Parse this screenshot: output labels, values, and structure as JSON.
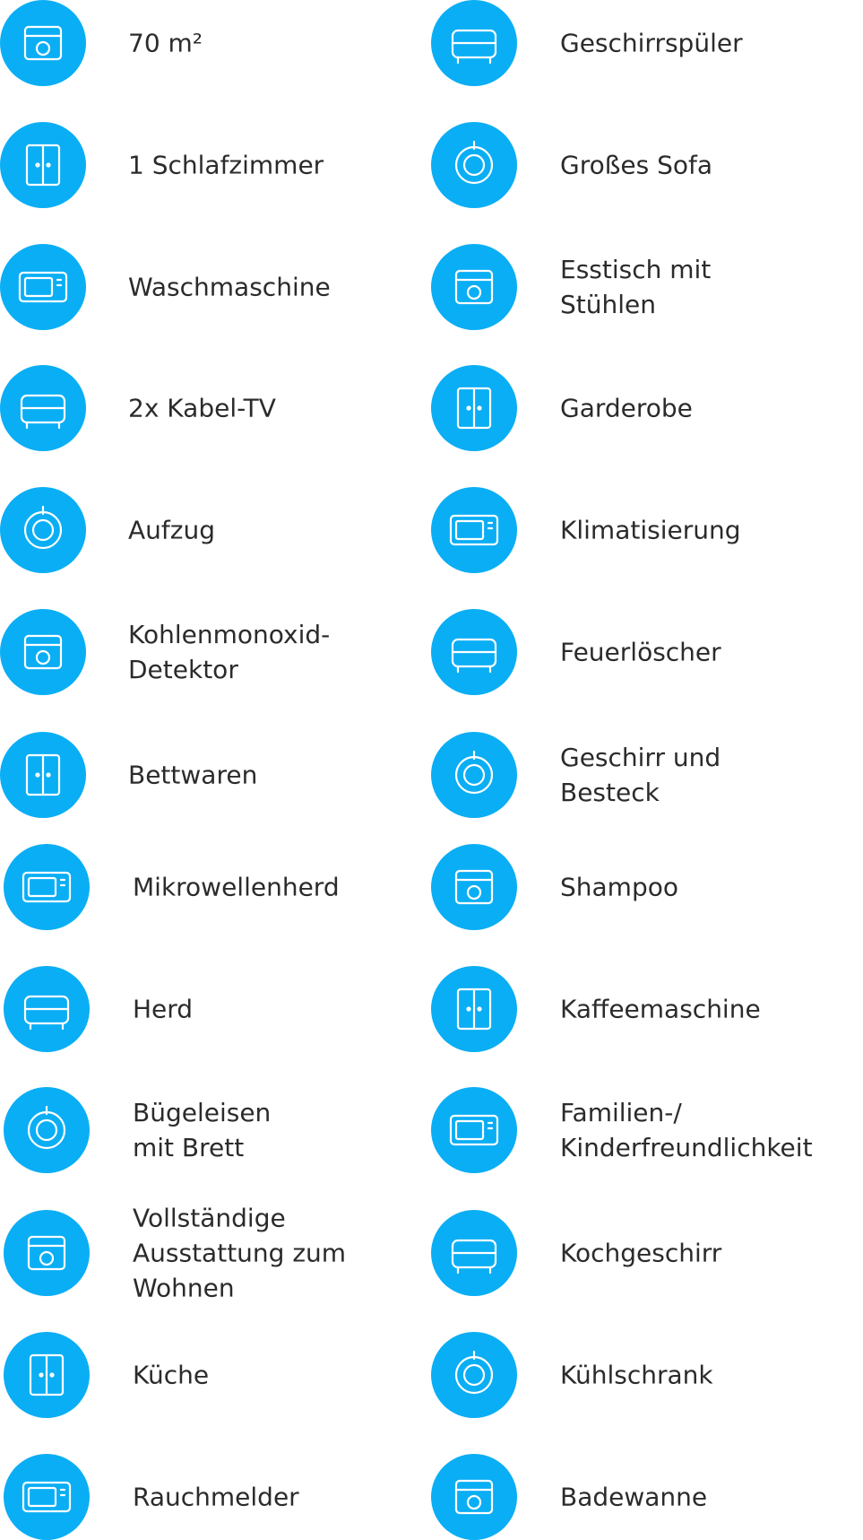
{
  "amenities": [
    {
      "lines": [
        "70 m²"
      ]
    },
    {
      "lines": [
        "Geschirrspüler"
      ]
    },
    {
      "lines": [
        "1 Schlafzimmer"
      ]
    },
    {
      "lines": [
        "Großes Sofa"
      ]
    },
    {
      "lines": [
        "Waschmaschine"
      ]
    },
    {
      "lines": [
        "Esstisch mit",
        "Stühlen"
      ]
    },
    {
      "lines": [
        "2x Kabel-TV"
      ]
    },
    {
      "lines": [
        "Garderobe"
      ]
    },
    {
      "lines": [
        "Aufzug"
      ]
    },
    {
      "lines": [
        "Klimatisierung"
      ]
    },
    {
      "lines": [
        "Kohlenmonoxid-",
        "Detektor"
      ]
    },
    {
      "lines": [
        "Feuerlöscher"
      ]
    },
    {
      "lines": [
        "Bettwaren"
      ]
    },
    {
      "lines": [
        "Geschirr und",
        "Besteck"
      ]
    },
    {
      "lines": [
        "Mikrowellenherd"
      ]
    },
    {
      "lines": [
        "Shampoo"
      ]
    },
    {
      "lines": [
        "Herd"
      ]
    },
    {
      "lines": [
        "Kaffeemaschine"
      ]
    },
    {
      "lines": [
        "Bügeleisen",
        "mit Brett"
      ]
    },
    {
      "lines": [
        "Familien-/",
        "Kinderfreundlichkeit"
      ]
    },
    {
      "lines": [
        "Vollständige",
        "Ausstattung zum",
        "Wohnen"
      ]
    },
    {
      "lines": [
        "Kochgeschirr"
      ]
    },
    {
      "lines": [
        "Küche"
      ]
    },
    {
      "lines": [
        "Kühlschrank"
      ]
    },
    {
      "lines": [
        "Rauchmelder"
      ]
    },
    {
      "lines": [
        "Badewanne"
      ]
    }
  ]
}
